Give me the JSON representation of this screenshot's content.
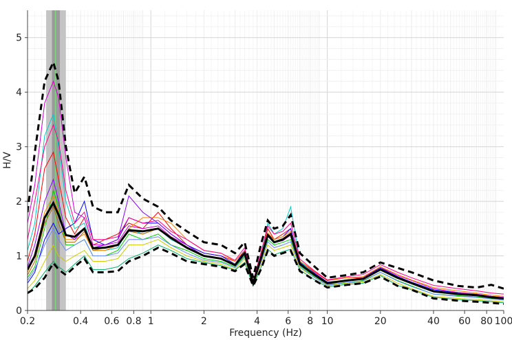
{
  "chart_data": {
    "type": "line",
    "title": "",
    "xlabel": "Frequency (Hz)",
    "ylabel": "H/V",
    "xscale": "log",
    "xlim": [
      0.2,
      100
    ],
    "ylim": [
      0,
      5.5
    ],
    "grid": true,
    "legend": "none",
    "x_ticks": [
      {
        "value": 0.2,
        "label": "0.2"
      },
      {
        "value": 0.4,
        "label": "0.4"
      },
      {
        "value": 0.6,
        "label": "0.6"
      },
      {
        "value": 0.8,
        "label": "0.8"
      },
      {
        "value": 1,
        "label": "1"
      },
      {
        "value": 2,
        "label": "2"
      },
      {
        "value": 4,
        "label": "4"
      },
      {
        "value": 6,
        "label": "6"
      },
      {
        "value": 8,
        "label": "8"
      },
      {
        "value": 10,
        "label": "10"
      },
      {
        "value": 20,
        "label": "20"
      },
      {
        "value": 40,
        "label": "40"
      },
      {
        "value": 60,
        "label": "60"
      },
      {
        "value": 80,
        "label": "80"
      },
      {
        "value": 100,
        "label": "100"
      }
    ],
    "y_ticks": [
      {
        "value": 0,
        "label": "0"
      },
      {
        "value": 1,
        "label": "1"
      },
      {
        "value": 2,
        "label": "2"
      },
      {
        "value": 3,
        "label": "3"
      },
      {
        "value": 4,
        "label": "4"
      },
      {
        "value": 5,
        "label": "5"
      }
    ],
    "peak_band": {
      "outer": [
        0.255,
        0.33
      ],
      "inner": [
        0.275,
        0.305
      ],
      "outer_color": "#c4c4c4",
      "inner_color": "#9a9a9a",
      "green_line_x": 0.288
    },
    "x": [
      0.2,
      0.22,
      0.25,
      0.28,
      0.3,
      0.33,
      0.37,
      0.42,
      0.47,
      0.55,
      0.65,
      0.75,
      0.9,
      1.1,
      1.3,
      1.6,
      2.0,
      2.5,
      3.0,
      3.4,
      3.8,
      4.2,
      4.6,
      5.0,
      5.6,
      6.2,
      7.0,
      8.5,
      10,
      13,
      16,
      20,
      25,
      30,
      40,
      55,
      70,
      85,
      100
    ],
    "mean": [
      0.75,
      1.0,
      1.7,
      1.97,
      1.75,
      1.38,
      1.35,
      1.5,
      1.14,
      1.15,
      1.2,
      1.47,
      1.45,
      1.5,
      1.33,
      1.15,
      1.0,
      0.95,
      0.83,
      1.05,
      0.5,
      0.95,
      1.38,
      1.25,
      1.3,
      1.4,
      0.85,
      0.65,
      0.5,
      0.55,
      0.58,
      0.75,
      0.6,
      0.5,
      0.35,
      0.3,
      0.28,
      0.24,
      0.22
    ],
    "upper": [
      1.8,
      2.9,
      4.2,
      4.55,
      4.2,
      3.0,
      2.15,
      2.45,
      1.9,
      1.8,
      1.8,
      2.3,
      2.05,
      1.9,
      1.65,
      1.45,
      1.25,
      1.2,
      1.05,
      1.25,
      0.6,
      1.2,
      1.65,
      1.5,
      1.55,
      1.75,
      1.05,
      0.8,
      0.6,
      0.65,
      0.7,
      0.88,
      0.78,
      0.7,
      0.55,
      0.45,
      0.42,
      0.47,
      0.4
    ],
    "lower": [
      0.32,
      0.4,
      0.6,
      0.87,
      0.75,
      0.65,
      0.8,
      0.95,
      0.7,
      0.7,
      0.72,
      0.9,
      1.0,
      1.15,
      1.05,
      0.9,
      0.85,
      0.8,
      0.72,
      0.85,
      0.45,
      0.75,
      1.1,
      1.0,
      1.05,
      1.1,
      0.72,
      0.55,
      0.42,
      0.47,
      0.5,
      0.62,
      0.45,
      0.38,
      0.22,
      0.18,
      0.16,
      0.14,
      0.12
    ],
    "colors": {
      "mean": "#000000",
      "bounds": "#000000",
      "windows": [
        "#ff0000",
        "#00cc00",
        "#0000ff",
        "#00cccc",
        "#cc00cc",
        "#cccc00",
        "#ff8800",
        "#8800ff",
        "#00aa66",
        "#ff0088",
        "#6688ff",
        "#aa6600"
      ]
    },
    "windows": [
      {
        "values": [
          0.9,
          1.4,
          2.6,
          2.9,
          2.4,
          1.7,
          1.4,
          1.7,
          1.2,
          1.3,
          1.4,
          1.6,
          1.5,
          1.8,
          1.5,
          1.2,
          1.05,
          1.0,
          0.9,
          1.1,
          0.5,
          1.0,
          1.5,
          1.3,
          1.4,
          1.5,
          0.9,
          0.7,
          0.55,
          0.6,
          0.6,
          0.8,
          0.6,
          0.5,
          0.35,
          0.3,
          0.28,
          0.25,
          0.22
        ]
      },
      {
        "values": [
          0.6,
          0.8,
          1.5,
          2.2,
          1.9,
          1.2,
          1.2,
          1.3,
          1.0,
          1.0,
          1.1,
          1.4,
          1.3,
          1.4,
          1.2,
          1.1,
          0.95,
          0.9,
          0.8,
          1.0,
          0.48,
          0.9,
          1.3,
          1.2,
          1.25,
          1.3,
          0.82,
          0.62,
          0.48,
          0.5,
          0.55,
          0.7,
          0.55,
          0.45,
          0.3,
          0.27,
          0.25,
          0.22,
          0.2
        ]
      },
      {
        "values": [
          0.5,
          0.7,
          1.3,
          1.6,
          1.4,
          1.5,
          1.6,
          2.0,
          1.3,
          1.2,
          1.3,
          1.7,
          1.6,
          1.6,
          1.4,
          1.2,
          1.05,
          1.0,
          0.85,
          1.1,
          0.52,
          1.0,
          1.4,
          1.3,
          1.35,
          1.5,
          0.88,
          0.68,
          0.52,
          0.55,
          0.6,
          0.78,
          0.62,
          0.52,
          0.38,
          0.32,
          0.3,
          0.26,
          0.24
        ]
      },
      {
        "values": [
          1.1,
          1.6,
          3.2,
          3.6,
          3.0,
          2.0,
          1.5,
          1.6,
          1.1,
          1.1,
          1.15,
          1.5,
          1.4,
          1.5,
          1.3,
          1.15,
          1.0,
          0.95,
          0.82,
          1.05,
          0.5,
          0.95,
          1.6,
          1.4,
          1.5,
          1.9,
          0.9,
          0.66,
          0.5,
          0.56,
          0.58,
          0.76,
          0.6,
          0.5,
          0.36,
          0.3,
          0.28,
          0.24,
          0.22
        ]
      },
      {
        "values": [
          1.6,
          2.3,
          3.8,
          4.2,
          3.9,
          2.8,
          1.8,
          1.7,
          1.2,
          1.2,
          1.25,
          1.55,
          1.5,
          1.55,
          1.35,
          1.2,
          1.0,
          0.96,
          0.84,
          1.06,
          0.5,
          0.96,
          1.4,
          1.26,
          1.32,
          1.42,
          0.86,
          0.66,
          0.5,
          0.56,
          0.6,
          0.8,
          0.64,
          0.55,
          0.4,
          0.33,
          0.3,
          0.26,
          0.24
        ]
      },
      {
        "values": [
          0.4,
          0.55,
          0.9,
          1.2,
          1.0,
          0.9,
          1.0,
          1.1,
          0.9,
          0.9,
          0.95,
          1.2,
          1.2,
          1.3,
          1.15,
          1.0,
          0.9,
          0.85,
          0.75,
          0.95,
          0.46,
          0.85,
          1.2,
          1.1,
          1.15,
          1.2,
          0.78,
          0.6,
          0.45,
          0.5,
          0.52,
          0.66,
          0.5,
          0.4,
          0.26,
          0.22,
          0.2,
          0.18,
          0.16
        ]
      },
      {
        "values": [
          0.7,
          1.0,
          1.8,
          2.1,
          1.8,
          1.3,
          1.3,
          1.4,
          1.1,
          1.1,
          1.2,
          1.5,
          1.7,
          1.7,
          1.6,
          1.3,
          1.1,
          1.05,
          0.9,
          1.1,
          0.52,
          1.0,
          1.42,
          1.3,
          1.35,
          1.45,
          0.9,
          0.72,
          0.56,
          0.6,
          0.62,
          0.8,
          0.66,
          0.56,
          0.42,
          0.36,
          0.32,
          0.28,
          0.26
        ]
      },
      {
        "values": [
          0.8,
          1.2,
          2.0,
          2.4,
          2.0,
          1.4,
          1.3,
          1.5,
          1.15,
          1.2,
          1.3,
          2.1,
          1.8,
          1.6,
          1.4,
          1.2,
          1.0,
          0.95,
          0.84,
          1.05,
          0.5,
          0.95,
          1.36,
          1.24,
          1.28,
          1.38,
          0.86,
          0.64,
          0.5,
          0.54,
          0.58,
          0.76,
          0.6,
          0.5,
          0.34,
          0.3,
          0.27,
          0.24,
          0.22
        ]
      },
      {
        "values": [
          0.3,
          0.45,
          0.7,
          0.9,
          0.8,
          0.7,
          0.85,
          1.0,
          0.75,
          0.75,
          0.8,
          0.95,
          1.05,
          1.2,
          1.1,
          0.95,
          0.88,
          0.82,
          0.74,
          0.88,
          0.45,
          0.78,
          1.12,
          1.02,
          1.08,
          1.12,
          0.74,
          0.56,
          0.43,
          0.48,
          0.5,
          0.64,
          0.46,
          0.38,
          0.24,
          0.2,
          0.18,
          0.16,
          0.14
        ]
      },
      {
        "values": [
          1.3,
          2.0,
          3.0,
          3.4,
          3.1,
          2.2,
          1.6,
          1.8,
          1.3,
          1.3,
          1.35,
          1.7,
          1.6,
          1.65,
          1.45,
          1.3,
          1.1,
          1.05,
          0.92,
          1.15,
          0.54,
          1.05,
          1.55,
          1.4,
          1.45,
          1.6,
          0.94,
          0.72,
          0.56,
          0.62,
          0.66,
          0.84,
          0.7,
          0.6,
          0.46,
          0.4,
          0.36,
          0.32,
          0.3
        ]
      },
      {
        "values": [
          0.55,
          0.75,
          1.2,
          1.5,
          1.3,
          1.1,
          1.2,
          1.3,
          1.0,
          1.0,
          1.05,
          1.3,
          1.3,
          1.35,
          1.2,
          1.05,
          0.92,
          0.88,
          0.78,
          0.98,
          0.47,
          0.88,
          1.26,
          1.15,
          1.2,
          1.26,
          0.8,
          0.6,
          0.46,
          0.52,
          0.54,
          0.7,
          0.54,
          0.44,
          0.3,
          0.26,
          0.24,
          0.21,
          0.19
        ]
      },
      {
        "values": [
          0.65,
          0.9,
          1.6,
          1.9,
          1.6,
          1.25,
          1.25,
          1.45,
          1.1,
          1.15,
          1.2,
          1.45,
          1.4,
          1.5,
          1.35,
          1.15,
          1.0,
          0.96,
          0.85,
          1.06,
          0.51,
          0.96,
          1.38,
          1.26,
          1.32,
          1.42,
          0.86,
          0.66,
          0.5,
          0.56,
          0.58,
          0.76,
          0.6,
          0.5,
          0.36,
          0.3,
          0.28,
          0.24,
          0.22
        ]
      }
    ]
  }
}
